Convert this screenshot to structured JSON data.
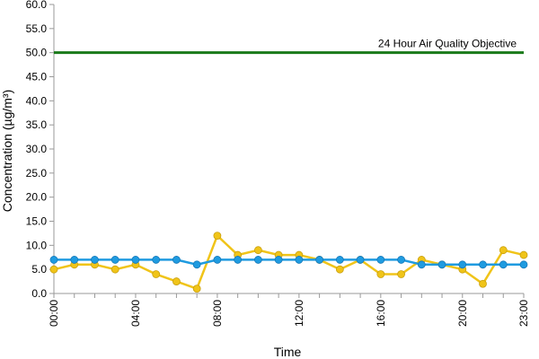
{
  "chart_data": {
    "type": "line",
    "xlabel": "Time",
    "ylabel": "Concentration (µg/m³)",
    "ylim": [
      0,
      60
    ],
    "yticks": [
      "0.0",
      "5.0",
      "10.0",
      "15.0",
      "20.0",
      "25.0",
      "30.0",
      "35.0",
      "40.0",
      "45.0",
      "50.0",
      "55.0",
      "60.0"
    ],
    "x": [
      0,
      1,
      2,
      3,
      4,
      5,
      6,
      7,
      8,
      9,
      10,
      11,
      12,
      13,
      14,
      15,
      16,
      17,
      18,
      19,
      20,
      21,
      22,
      23
    ],
    "xticks": [
      {
        "hour": 0,
        "label": "00:00"
      },
      {
        "hour": 4,
        "label": "04:00"
      },
      {
        "hour": 8,
        "label": "08:00"
      },
      {
        "hour": 12,
        "label": "12:00"
      },
      {
        "hour": 16,
        "label": "16:00"
      },
      {
        "hour": 20,
        "label": "20:00"
      },
      {
        "hour": 23,
        "label": "23:00"
      }
    ],
    "grid": false,
    "series": [
      {
        "color": "#f0c419",
        "marker_color": "#f0c419",
        "values": [
          5,
          6,
          6,
          5,
          6,
          4,
          2.5,
          1,
          12,
          8,
          9,
          8,
          8,
          7,
          5,
          7,
          4,
          4,
          7,
          6,
          5,
          2,
          9,
          8
        ]
      },
      {
        "color": "#1f9be0",
        "marker_color": "#1f9be0",
        "values": [
          7,
          7,
          7,
          7,
          7,
          7,
          7,
          6,
          7,
          7,
          7,
          7,
          7,
          7,
          7,
          7,
          7,
          7,
          6,
          6,
          6,
          6,
          6,
          6
        ]
      }
    ],
    "reference_line": {
      "value": 50,
      "label": "24 Hour Air Quality Objective",
      "color": "#1a7a1a"
    }
  }
}
